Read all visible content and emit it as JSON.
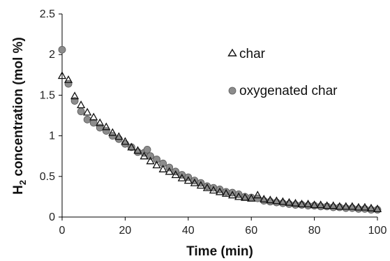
{
  "chart_data": {
    "type": "scatter",
    "xlabel": "Time (min)",
    "ylabel_parts": [
      "H",
      "2",
      " concentration (mol %)"
    ],
    "xlim": [
      0,
      100
    ],
    "ylim": [
      0,
      2.5
    ],
    "x_ticks": [
      "0",
      "20",
      "40",
      "60",
      "80",
      "100"
    ],
    "y_ticks": [
      "0",
      "0.5",
      "1",
      "1.5",
      "2",
      "2.5"
    ],
    "grid": false,
    "legend_position": "top-right",
    "series": [
      {
        "name": "char",
        "marker": "open-triangle",
        "color": "#111111",
        "points": [
          [
            0,
            1.74
          ],
          [
            2,
            1.69
          ],
          [
            4,
            1.49
          ],
          [
            6,
            1.38
          ],
          [
            8,
            1.29
          ],
          [
            10,
            1.23
          ],
          [
            12,
            1.16
          ],
          [
            14,
            1.11
          ],
          [
            16,
            1.04
          ],
          [
            18,
            0.99
          ],
          [
            20,
            0.93
          ],
          [
            22,
            0.86
          ],
          [
            24,
            0.82
          ],
          [
            26,
            0.75
          ],
          [
            28,
            0.69
          ],
          [
            30,
            0.64
          ],
          [
            32,
            0.59
          ],
          [
            34,
            0.56
          ],
          [
            36,
            0.52
          ],
          [
            38,
            0.48
          ],
          [
            40,
            0.45
          ],
          [
            42,
            0.42
          ],
          [
            44,
            0.39
          ],
          [
            46,
            0.36
          ],
          [
            48,
            0.33
          ],
          [
            50,
            0.31
          ],
          [
            52,
            0.29
          ],
          [
            54,
            0.27
          ],
          [
            56,
            0.25
          ],
          [
            58,
            0.24
          ],
          [
            60,
            0.23
          ],
          [
            62,
            0.27
          ],
          [
            64,
            0.22
          ],
          [
            66,
            0.21
          ],
          [
            68,
            0.2
          ],
          [
            70,
            0.19
          ],
          [
            72,
            0.18
          ],
          [
            74,
            0.17
          ],
          [
            76,
            0.16
          ],
          [
            78,
            0.16
          ],
          [
            80,
            0.15
          ],
          [
            82,
            0.15
          ],
          [
            84,
            0.14
          ],
          [
            86,
            0.14
          ],
          [
            88,
            0.13
          ],
          [
            90,
            0.13
          ],
          [
            92,
            0.13
          ],
          [
            94,
            0.12
          ],
          [
            96,
            0.12
          ],
          [
            98,
            0.11
          ],
          [
            100,
            0.1
          ]
        ]
      },
      {
        "name": "oxygenated char",
        "marker": "filled-circle",
        "color": "#8c8c8c",
        "points": [
          [
            0,
            2.06
          ],
          [
            2,
            1.64
          ],
          [
            4,
            1.43
          ],
          [
            6,
            1.3
          ],
          [
            8,
            1.2
          ],
          [
            10,
            1.16
          ],
          [
            12,
            1.1
          ],
          [
            14,
            1.06
          ],
          [
            16,
            1.0
          ],
          [
            18,
            0.96
          ],
          [
            20,
            0.9
          ],
          [
            22,
            0.86
          ],
          [
            24,
            0.8
          ],
          [
            26,
            0.79
          ],
          [
            27,
            0.83
          ],
          [
            28,
            0.75
          ],
          [
            30,
            0.71
          ],
          [
            32,
            0.66
          ],
          [
            34,
            0.61
          ],
          [
            36,
            0.56
          ],
          [
            38,
            0.52
          ],
          [
            40,
            0.49
          ],
          [
            42,
            0.45
          ],
          [
            44,
            0.42
          ],
          [
            46,
            0.38
          ],
          [
            48,
            0.36
          ],
          [
            50,
            0.34
          ],
          [
            52,
            0.31
          ],
          [
            54,
            0.3
          ],
          [
            56,
            0.28
          ],
          [
            58,
            0.25
          ],
          [
            60,
            0.24
          ],
          [
            62,
            0.23
          ],
          [
            64,
            0.2
          ],
          [
            66,
            0.19
          ],
          [
            68,
            0.18
          ],
          [
            70,
            0.17
          ],
          [
            72,
            0.16
          ],
          [
            74,
            0.15
          ],
          [
            76,
            0.15
          ],
          [
            78,
            0.14
          ],
          [
            80,
            0.14
          ],
          [
            82,
            0.13
          ],
          [
            84,
            0.13
          ],
          [
            86,
            0.12
          ],
          [
            88,
            0.12
          ],
          [
            90,
            0.11
          ],
          [
            92,
            0.11
          ],
          [
            94,
            0.1
          ],
          [
            96,
            0.1
          ],
          [
            98,
            0.09
          ],
          [
            100,
            0.09
          ]
        ]
      }
    ]
  }
}
